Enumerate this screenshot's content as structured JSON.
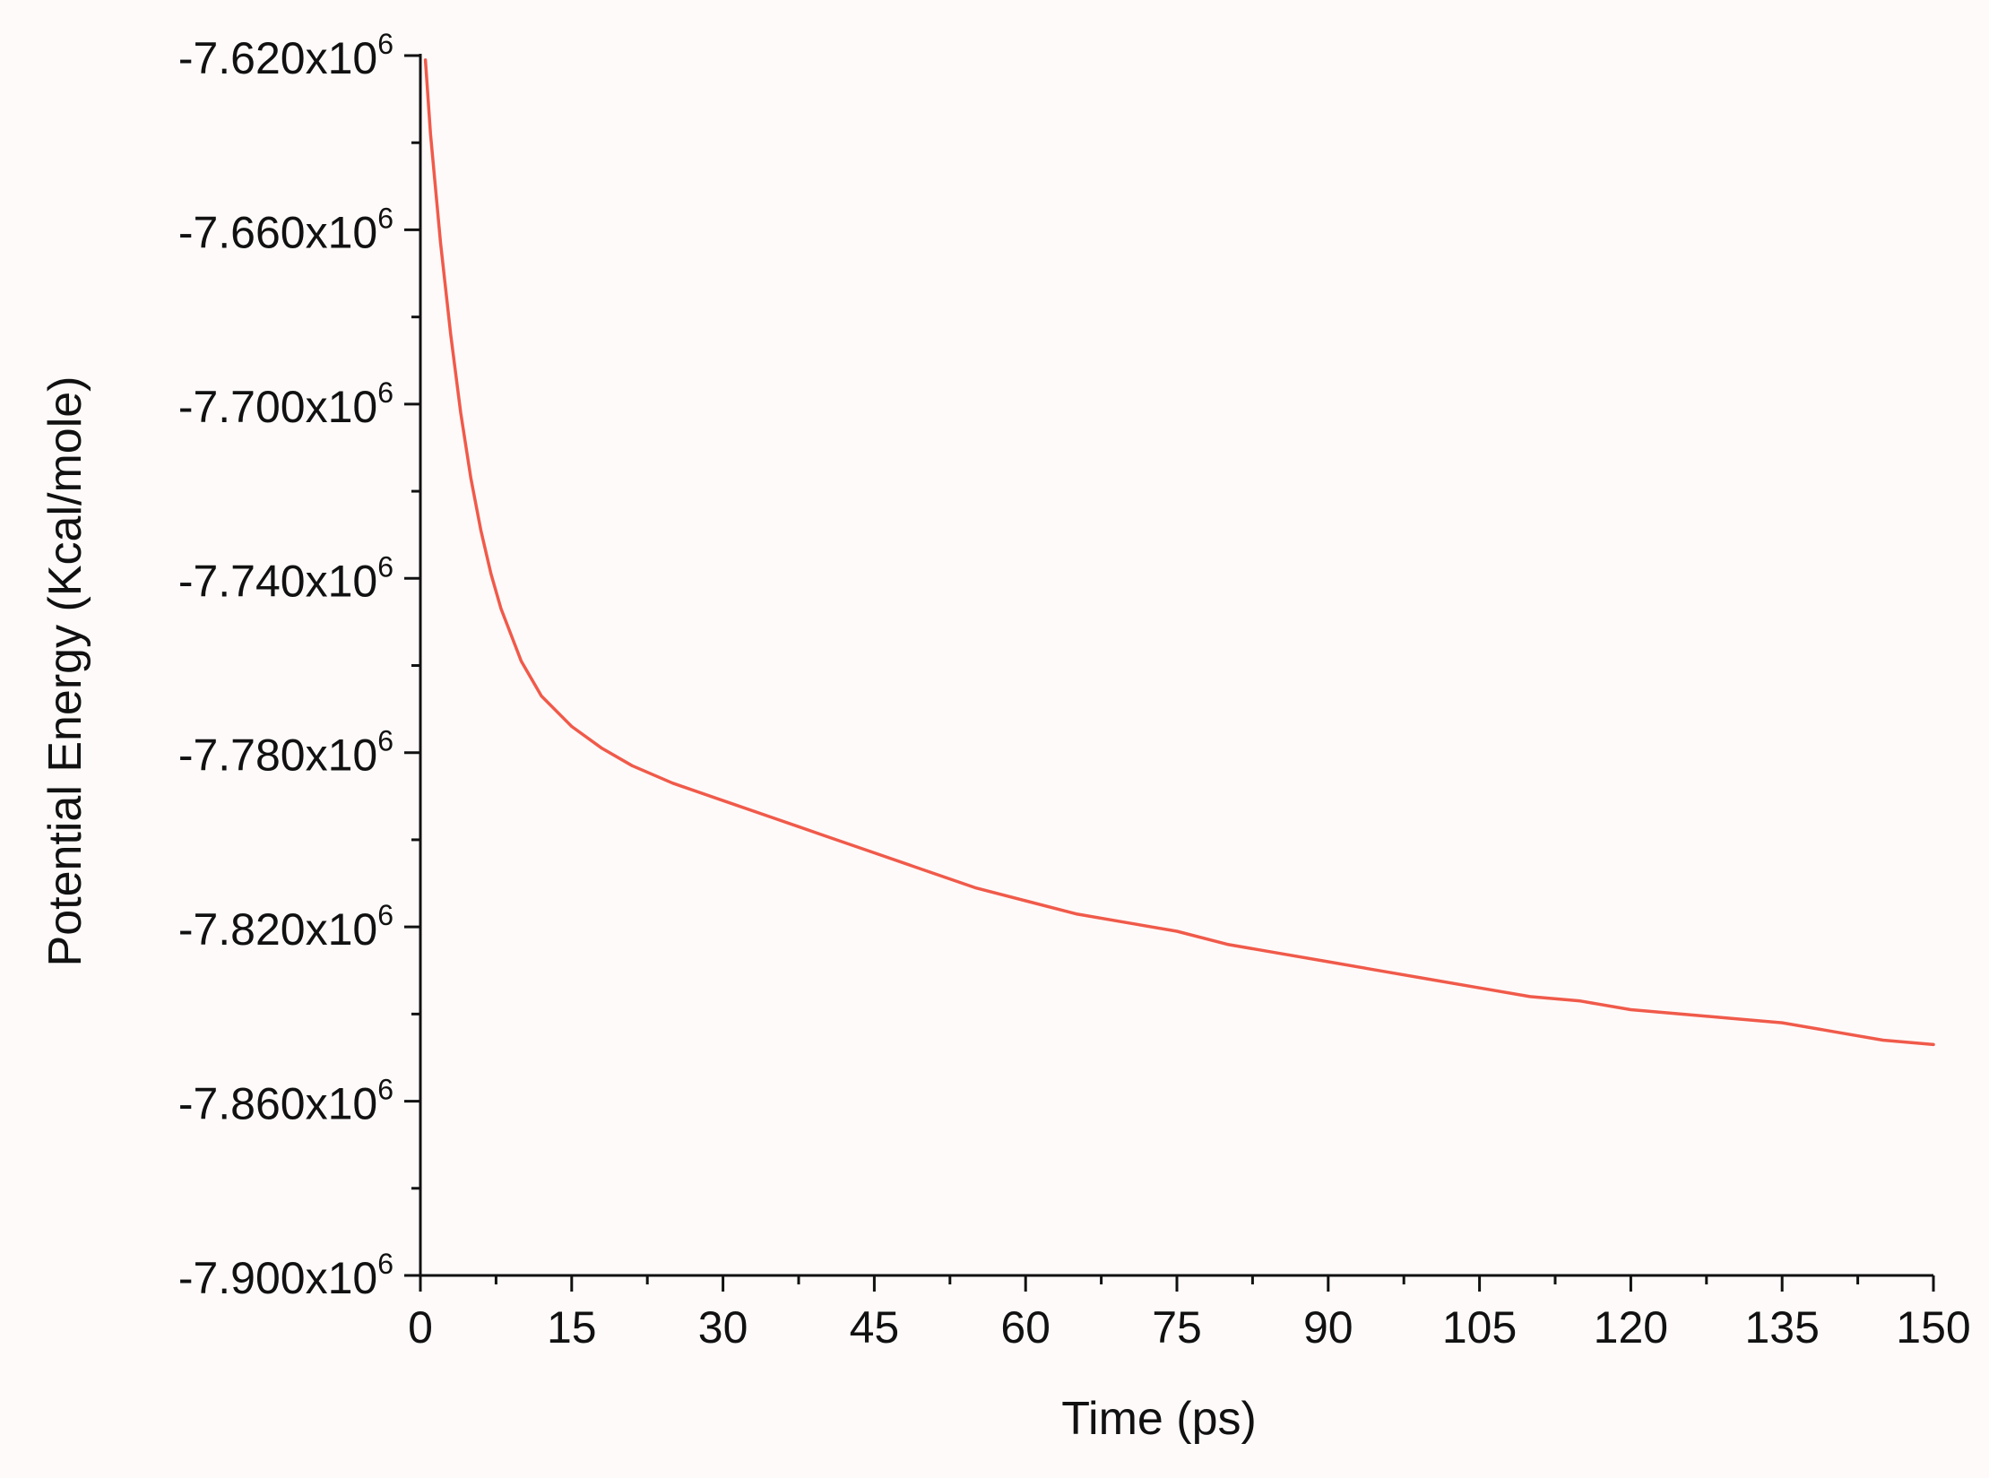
{
  "chart_data": {
    "type": "line",
    "title": "",
    "xlabel": "Time (ps)",
    "ylabel": "Potential Energy (Kcal/mole)",
    "xlim": [
      0,
      150
    ],
    "ylim": [
      -7900000,
      -7620000
    ],
    "x_ticks": [
      0,
      15,
      30,
      45,
      60,
      75,
      90,
      105,
      120,
      135,
      150
    ],
    "x_tick_labels": [
      "0",
      "15",
      "30",
      "45",
      "60",
      "75",
      "90",
      "105",
      "120",
      "135",
      "150"
    ],
    "y_ticks": [
      -7620000,
      -7660000,
      -7700000,
      -7740000,
      -7780000,
      -7820000,
      -7860000,
      -7900000
    ],
    "y_tick_labels": [
      {
        "mantissa": "-7.620x10",
        "exponent": "6"
      },
      {
        "mantissa": "-7.660x10",
        "exponent": "6"
      },
      {
        "mantissa": "-7.700x10",
        "exponent": "6"
      },
      {
        "mantissa": "-7.740x10",
        "exponent": "6"
      },
      {
        "mantissa": "-7.780x10",
        "exponent": "6"
      },
      {
        "mantissa": "-7.820x10",
        "exponent": "6"
      },
      {
        "mantissa": "-7.860x10",
        "exponent": "6"
      },
      {
        "mantissa": "-7.900x10",
        "exponent": "6"
      }
    ],
    "grid": false,
    "legend": "none",
    "series": [
      {
        "color": "#f05a4a",
        "x": [
          0.5,
          1,
          2,
          3,
          4,
          5,
          6,
          7,
          8,
          10,
          12,
          15,
          18,
          21,
          25,
          30,
          35,
          40,
          45,
          50,
          55,
          60,
          65,
          70,
          75,
          80,
          85,
          90,
          95,
          100,
          105,
          110,
          115,
          120,
          125,
          130,
          135,
          140,
          145,
          150
        ],
        "y": [
          -7621000,
          -7638000,
          -7663000,
          -7684000,
          -7702000,
          -7717000,
          -7729000,
          -7739000,
          -7747000,
          -7759000,
          -7767000,
          -7774000,
          -7779000,
          -7783000,
          -7787000,
          -7791000,
          -7795000,
          -7799000,
          -7803000,
          -7807000,
          -7811000,
          -7814000,
          -7817000,
          -7819000,
          -7821000,
          -7824000,
          -7826000,
          -7828000,
          -7830000,
          -7832000,
          -7834000,
          -7836000,
          -7837000,
          -7839000,
          -7840000,
          -7841000,
          -7842000,
          -7844000,
          -7846000,
          -7847000
        ]
      }
    ]
  }
}
